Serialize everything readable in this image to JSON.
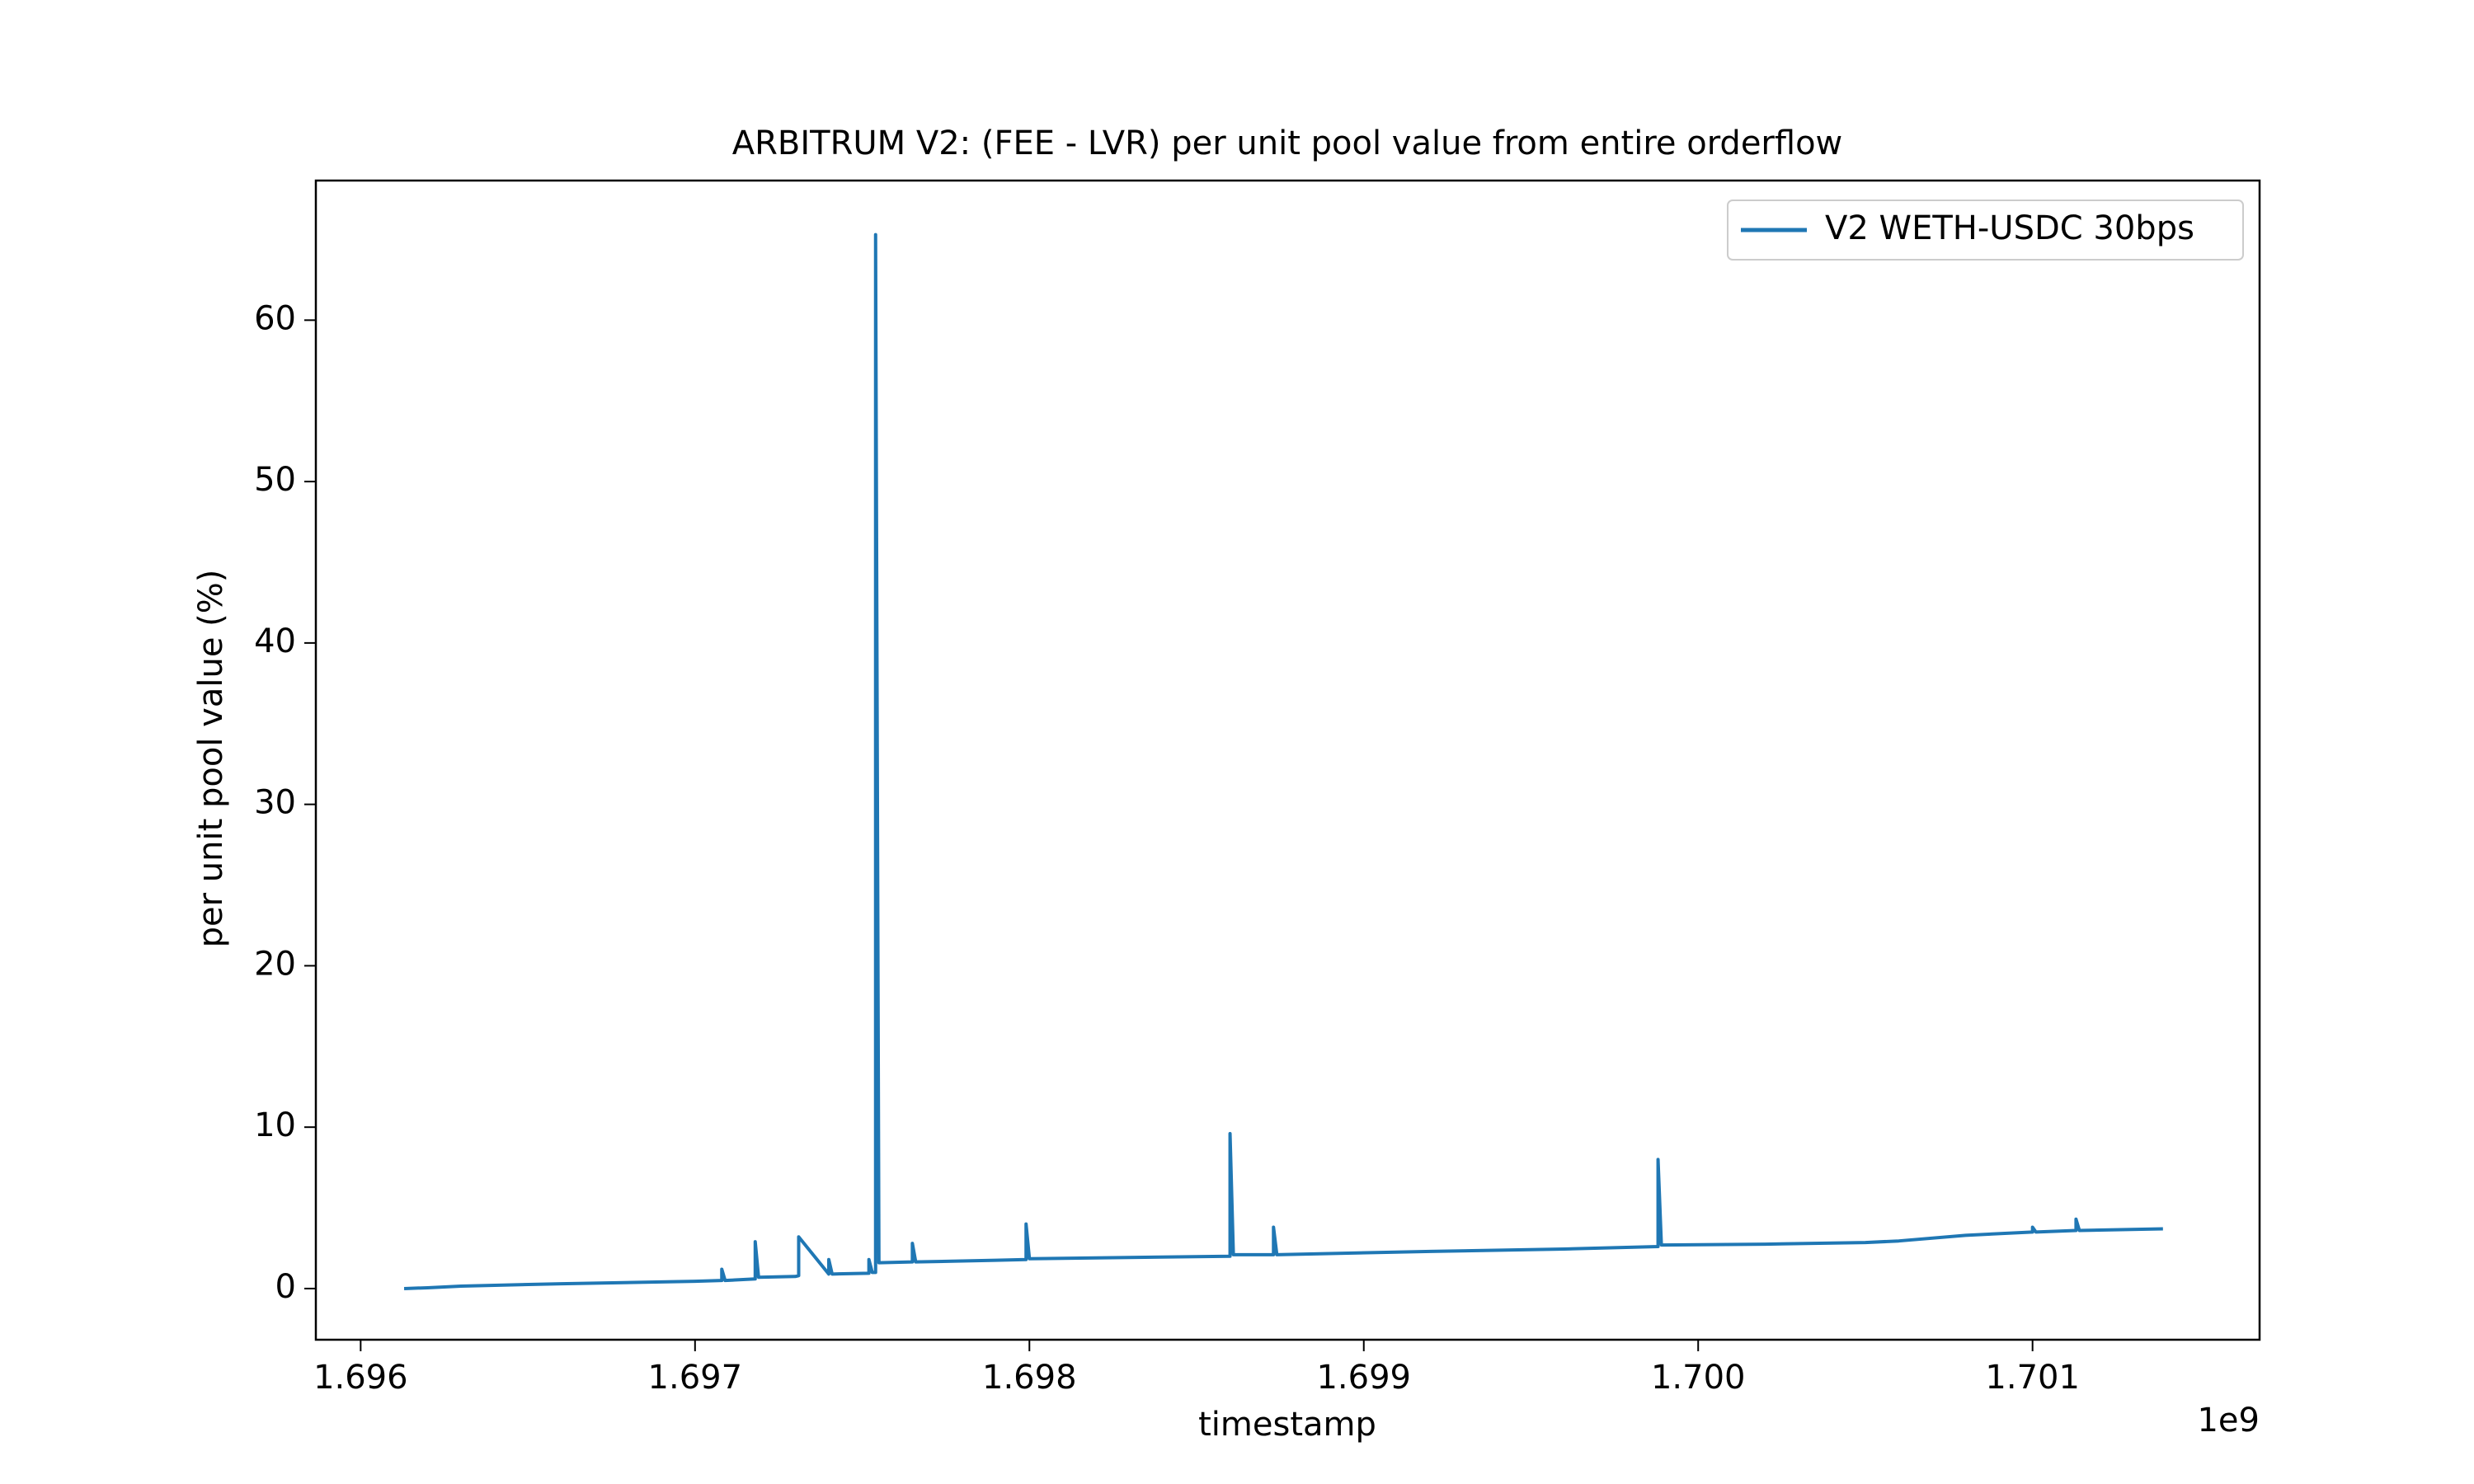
{
  "chart_data": {
    "type": "line",
    "title": "ARBITRUM V2: (FEE - LVR) per unit pool value from entire orderflow",
    "x_label": "timestamp",
    "y_label": "per unit pool value (%)",
    "x_offset_label": "1e9",
    "x": [
      1.69613,
      1.6962,
      1.6963,
      1.6966,
      1.697,
      1.69708,
      1.69708,
      1.69709,
      1.69718,
      1.69718,
      1.69719,
      1.6973,
      1.69731,
      1.69731,
      1.6974,
      1.6974,
      1.69741,
      1.69752,
      1.69752,
      1.69753,
      1.69754,
      1.69754,
      1.69755,
      1.69765,
      1.69765,
      1.69766,
      1.6979,
      1.69799,
      1.69799,
      1.698,
      1.6982,
      1.6986,
      1.6986,
      1.69861,
      1.69873,
      1.69873,
      1.69874,
      1.6992,
      1.6996,
      1.69988,
      1.69988,
      1.69989,
      1.7002,
      1.7005,
      1.7006,
      1.7008,
      1.701,
      1.701,
      1.70101,
      1.70113,
      1.70113,
      1.70114,
      1.70139
    ],
    "series": [
      {
        "name": "V2 WETH-USDC 30bps",
        "color": "#1f77b4",
        "values": [
          0,
          0.05,
          0.15,
          0.3,
          0.45,
          0.5,
          1.2,
          0.5,
          0.6,
          2.9,
          0.7,
          0.75,
          0.8,
          3.2,
          0.9,
          1.8,
          0.9,
          0.95,
          1.8,
          1.0,
          1.0,
          65.3,
          1.6,
          1.65,
          2.8,
          1.65,
          1.75,
          1.8,
          4.0,
          1.85,
          1.9,
          2.0,
          9.6,
          2.1,
          2.1,
          3.8,
          2.1,
          2.3,
          2.45,
          2.6,
          8.0,
          2.7,
          2.75,
          2.85,
          2.95,
          3.3,
          3.5,
          3.8,
          3.5,
          3.6,
          4.3,
          3.6,
          3.7
        ]
      }
    ],
    "xlim": [
      1.695866,
      1.701679
    ],
    "ylim": [
      -3.17,
      68.65
    ],
    "xticks": [
      1.696,
      1.697,
      1.698,
      1.699,
      {
        "value": 1.7,
        "label": "1.700"
      },
      1.701
    ],
    "yticks": [
      0,
      10,
      20,
      30,
      40,
      50,
      60
    ],
    "legend": "upper right",
    "grid": false
  }
}
